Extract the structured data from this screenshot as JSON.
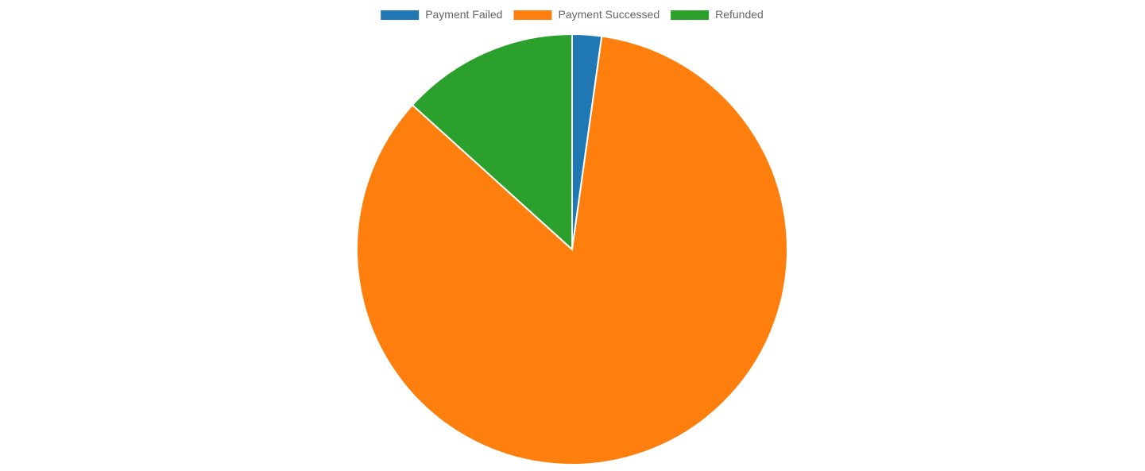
{
  "chart_data": {
    "type": "pie",
    "categories": [
      "Payment Failed",
      "Payment Successed",
      "Refunded"
    ],
    "values": [
      2.2,
      84.5,
      13.3
    ],
    "colors": [
      "#1f77b4",
      "#ff7f0e",
      "#2ca02c"
    ],
    "legend_position": "top-center",
    "title": ""
  }
}
